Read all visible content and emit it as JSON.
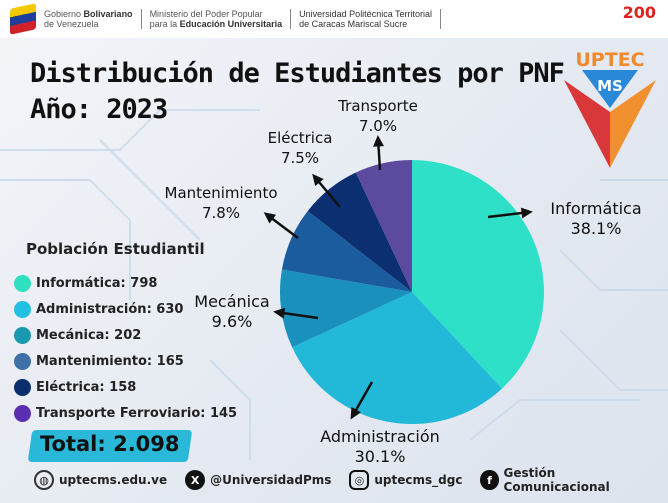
{
  "header": {
    "gov_line1": "Gobierno",
    "gov_line1_bold": "Bolivariano",
    "gov_line2": "de Venezuela",
    "min_line1": "Ministerio del Poder Popular",
    "min_line2": "para la",
    "min_line2_bold": "Educación Universitaria",
    "uni_line1": "Universidad Politécnica Territorial",
    "uni_line2": "de Caracas Mariscal Sucre",
    "bicentenario": "200"
  },
  "logo": {
    "top": "UPTEC",
    "bottom": "MS"
  },
  "chart_data": {
    "type": "pie",
    "title": "Distribución de Estudiantes por PNF",
    "subtitle": "Año: 2023",
    "categories": [
      "Informática",
      "Administración",
      "Mecánica",
      "Mantenimiento",
      "Eléctrica",
      "Transporte"
    ],
    "values": [
      38.1,
      30.1,
      9.6,
      7.8,
      7.5,
      7.0
    ],
    "labels": [
      "38.1%",
      "30.1%",
      "9.6%",
      "7.8%",
      "7.5%",
      "7.0%"
    ],
    "colors": [
      "#2fe0c8",
      "#22b8d8",
      "#1a90bd",
      "#1a5c9e",
      "#0b2f70",
      "#5b4a9e"
    ]
  },
  "legend": {
    "title": "Población Estudiantil",
    "items": [
      {
        "label": "Informática: 798",
        "color": "#2ee0c0"
      },
      {
        "label": "Administración: 630",
        "color": "#22c0e2"
      },
      {
        "label": "Mecánica: 202",
        "color": "#1a98b0"
      },
      {
        "label": "Mantenimiento: 165",
        "color": "#4070a8"
      },
      {
        "label": "Eléctrica: 158",
        "color": "#0a2e6e"
      },
      {
        "label": "Transporte Ferroviario: 145",
        "color": "#5a2eb0"
      }
    ],
    "total": "Total: 2.098"
  },
  "footer": {
    "web": "uptecms.edu.ve",
    "x": "@UniversidadPms",
    "instagram": "uptecms_dgc",
    "facebook": "Gestión Comunicacional"
  }
}
